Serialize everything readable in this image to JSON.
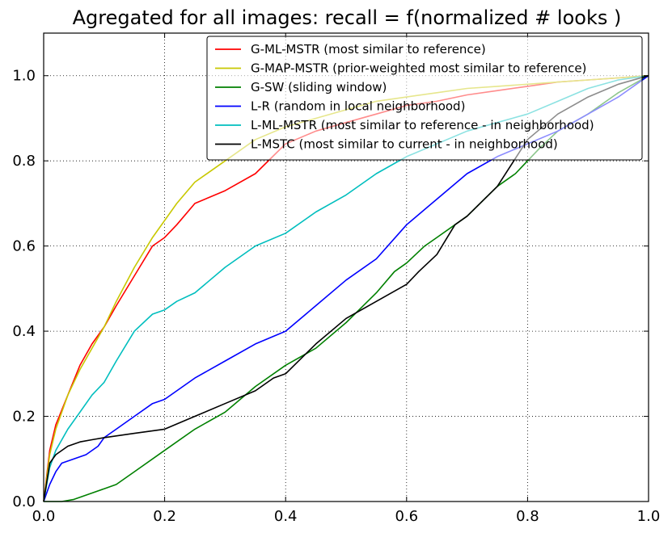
{
  "chart_data": {
    "type": "line",
    "title": "Agregated for all images:  recall = f(normalized # looks )",
    "xlabel": "",
    "ylabel": "",
    "xlim": [
      0.0,
      1.0
    ],
    "ylim": [
      0.0,
      1.1
    ],
    "x_ticks": [
      "0.0",
      "0.2",
      "0.4",
      "0.6",
      "0.8",
      "1.0"
    ],
    "y_ticks": [
      "0.0",
      "0.2",
      "0.4",
      "0.6",
      "0.8",
      "1.0"
    ],
    "grid": true,
    "legend_position": "top-right",
    "series": [
      {
        "name": "G-ML-MSTR (most similar to reference)",
        "color": "#ff0000",
        "x": [
          0,
          0.01,
          0.02,
          0.04,
          0.06,
          0.08,
          0.1,
          0.12,
          0.15,
          0.18,
          0.2,
          0.22,
          0.25,
          0.3,
          0.35,
          0.4,
          0.45,
          0.5,
          0.55,
          0.6,
          0.65,
          0.7,
          0.75,
          0.8,
          0.85,
          0.9,
          0.95,
          1.0
        ],
        "y": [
          0,
          0.12,
          0.18,
          0.25,
          0.32,
          0.37,
          0.41,
          0.46,
          0.53,
          0.6,
          0.62,
          0.65,
          0.7,
          0.73,
          0.77,
          0.84,
          0.87,
          0.89,
          0.91,
          0.93,
          0.94,
          0.955,
          0.965,
          0.975,
          0.985,
          0.99,
          0.995,
          1.0
        ]
      },
      {
        "name": "G-MAP-MSTR (prior-weighted most similar to reference)",
        "color": "#c8c800",
        "x": [
          0,
          0.01,
          0.02,
          0.04,
          0.06,
          0.08,
          0.1,
          0.12,
          0.15,
          0.18,
          0.2,
          0.22,
          0.25,
          0.3,
          0.35,
          0.4,
          0.45,
          0.5,
          0.55,
          0.6,
          0.65,
          0.7,
          0.75,
          0.8,
          0.85,
          0.9,
          0.95,
          1.0
        ],
        "y": [
          0,
          0.11,
          0.17,
          0.25,
          0.31,
          0.36,
          0.41,
          0.47,
          0.55,
          0.62,
          0.66,
          0.7,
          0.75,
          0.8,
          0.85,
          0.88,
          0.9,
          0.92,
          0.94,
          0.95,
          0.96,
          0.97,
          0.975,
          0.98,
          0.985,
          0.99,
          0.995,
          1.0
        ]
      },
      {
        "name": "G-SW (sliding window)",
        "color": "#008000",
        "x": [
          0,
          0.03,
          0.05,
          0.08,
          0.1,
          0.12,
          0.15,
          0.2,
          0.25,
          0.3,
          0.35,
          0.4,
          0.45,
          0.5,
          0.55,
          0.58,
          0.6,
          0.63,
          0.65,
          0.7,
          0.75,
          0.78,
          0.8,
          0.82,
          0.85,
          0.9,
          0.95,
          1.0
        ],
        "y": [
          0,
          0.0,
          0.005,
          0.02,
          0.03,
          0.04,
          0.07,
          0.12,
          0.17,
          0.21,
          0.27,
          0.32,
          0.36,
          0.42,
          0.49,
          0.54,
          0.56,
          0.6,
          0.62,
          0.67,
          0.74,
          0.77,
          0.8,
          0.83,
          0.87,
          0.91,
          0.96,
          1.0
        ]
      },
      {
        "name": "L-R (random in local neighborhood)",
        "color": "#0000ff",
        "x": [
          0,
          0.01,
          0.02,
          0.03,
          0.05,
          0.07,
          0.09,
          0.1,
          0.12,
          0.15,
          0.18,
          0.2,
          0.25,
          0.3,
          0.35,
          0.4,
          0.45,
          0.5,
          0.55,
          0.6,
          0.65,
          0.7,
          0.75,
          0.8,
          0.85,
          0.9,
          0.95,
          1.0
        ],
        "y": [
          0,
          0.04,
          0.07,
          0.09,
          0.1,
          0.11,
          0.13,
          0.15,
          0.17,
          0.2,
          0.23,
          0.24,
          0.29,
          0.33,
          0.37,
          0.4,
          0.46,
          0.52,
          0.57,
          0.65,
          0.71,
          0.77,
          0.81,
          0.84,
          0.87,
          0.91,
          0.95,
          1.0
        ]
      },
      {
        "name": "L-ML-MSTR (most similar to reference - in neighborhood)",
        "color": "#00bebe",
        "x": [
          0,
          0.01,
          0.02,
          0.04,
          0.06,
          0.08,
          0.1,
          0.12,
          0.15,
          0.18,
          0.2,
          0.22,
          0.25,
          0.3,
          0.35,
          0.4,
          0.45,
          0.5,
          0.55,
          0.6,
          0.65,
          0.7,
          0.75,
          0.8,
          0.85,
          0.9,
          0.95,
          1.0
        ],
        "y": [
          0,
          0.08,
          0.12,
          0.17,
          0.21,
          0.25,
          0.28,
          0.33,
          0.4,
          0.44,
          0.45,
          0.47,
          0.49,
          0.55,
          0.6,
          0.63,
          0.68,
          0.72,
          0.77,
          0.81,
          0.84,
          0.87,
          0.89,
          0.91,
          0.94,
          0.97,
          0.99,
          1.0
        ]
      },
      {
        "name": "L-MSTC (most similar to current - in neighborhood)",
        "color": "#000000",
        "x": [
          0,
          0.01,
          0.02,
          0.04,
          0.06,
          0.08,
          0.1,
          0.15,
          0.2,
          0.25,
          0.3,
          0.35,
          0.38,
          0.4,
          0.45,
          0.5,
          0.55,
          0.6,
          0.62,
          0.65,
          0.68,
          0.7,
          0.75,
          0.8,
          0.85,
          0.9,
          0.95,
          1.0
        ],
        "y": [
          0,
          0.09,
          0.11,
          0.13,
          0.14,
          0.145,
          0.15,
          0.16,
          0.17,
          0.2,
          0.23,
          0.26,
          0.29,
          0.3,
          0.37,
          0.43,
          0.47,
          0.51,
          0.54,
          0.58,
          0.65,
          0.67,
          0.74,
          0.85,
          0.91,
          0.95,
          0.98,
          1.0
        ]
      }
    ]
  }
}
